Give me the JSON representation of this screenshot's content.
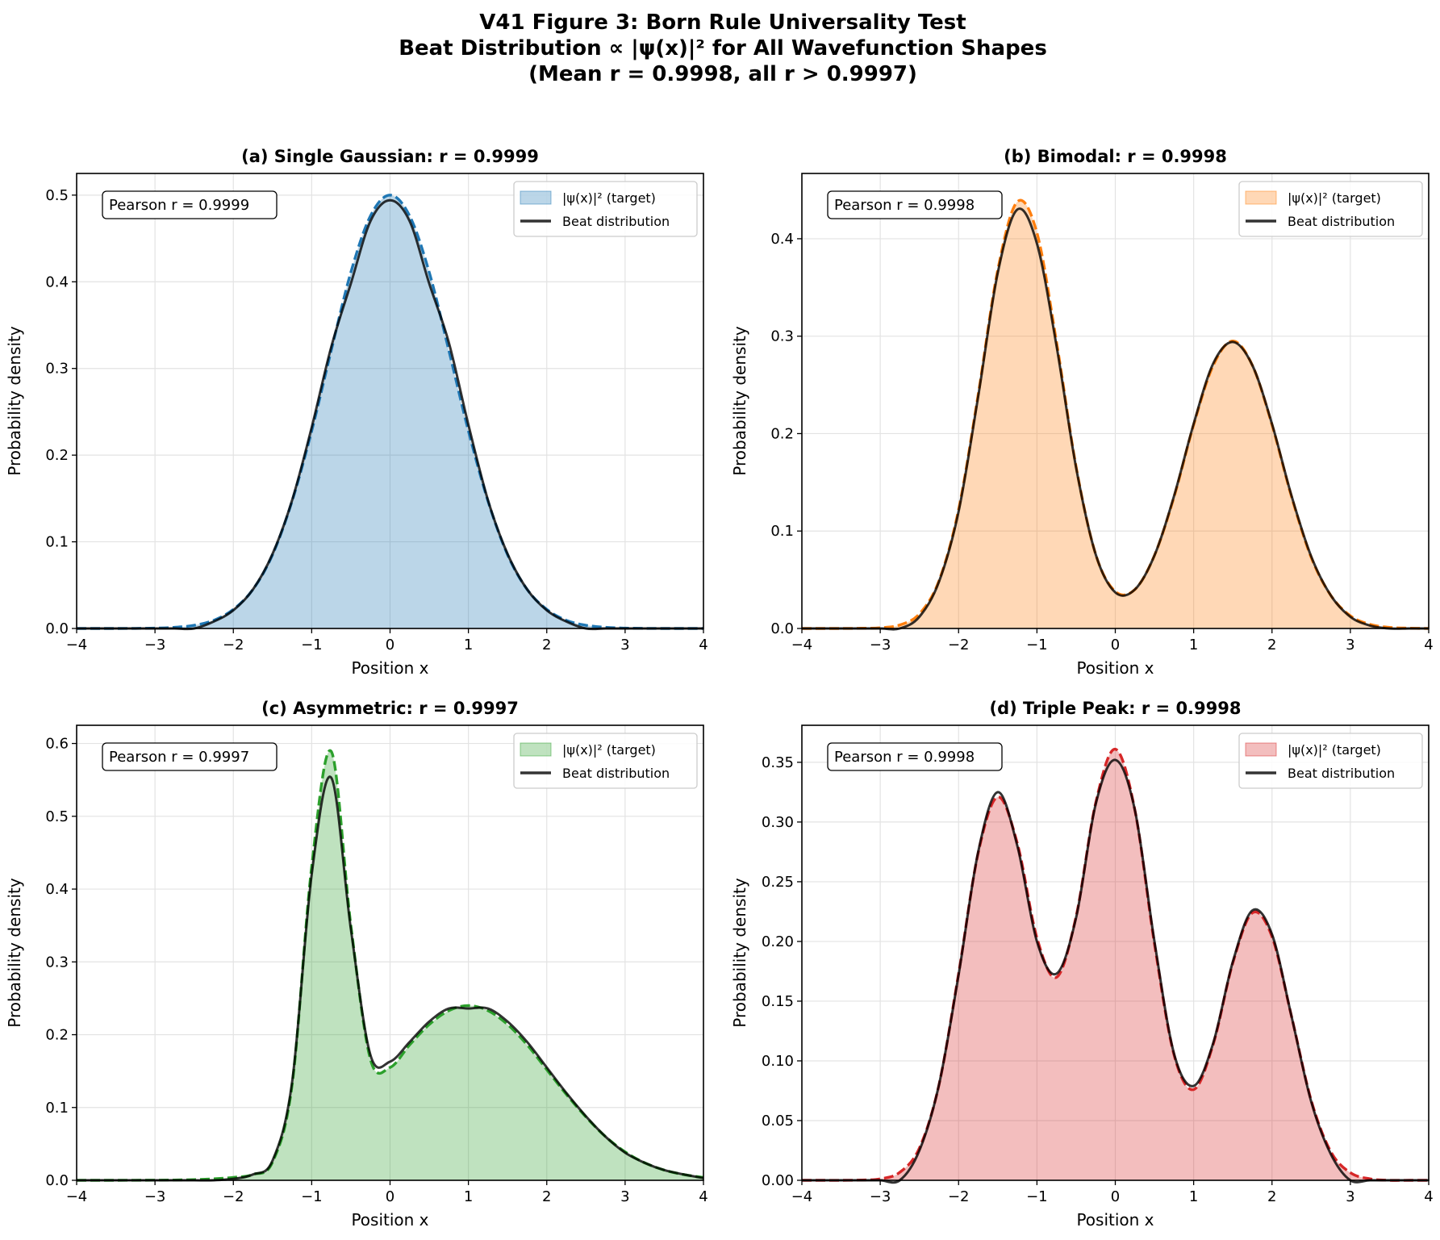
{
  "suptitle": [
    "V41 Figure 3: Born Rule Universality Test",
    "Beat Distribution ∝ |ψ(x)|² for All Wavefunction Shapes",
    "(Mean r = 0.9998, all r > 0.9997)"
  ],
  "chart_data": [
    {
      "type": "area",
      "title": "(a) Single Gaussian: r = 0.9999",
      "annotation": "Pearson r = 0.9999",
      "xlabel": "Position x",
      "ylabel": "Probability density",
      "xlim": [
        -4,
        4
      ],
      "ylim": [
        0,
        0.525
      ],
      "xticks": [
        -4,
        -3,
        -2,
        -1,
        0,
        1,
        2,
        3,
        4
      ],
      "xtick_labels": [
        "−4",
        "−3",
        "−2",
        "−1",
        "0",
        "1",
        "2",
        "3",
        "4"
      ],
      "yticks": [
        0,
        0.1,
        0.2,
        0.3,
        0.4,
        0.5
      ],
      "ytick_labels": [
        "0.0",
        "0.1",
        "0.2",
        "0.3",
        "0.4",
        "0.5"
      ],
      "grid": true,
      "legend_position": "top-right",
      "color": "#1f77b4",
      "x": [
        -4,
        -3.75,
        -3.5,
        -3.25,
        -3,
        -2.75,
        -2.5,
        -2.25,
        -2,
        -1.75,
        -1.5,
        -1.25,
        -1,
        -0.75,
        -0.5,
        -0.25,
        0,
        0.25,
        0.5,
        0.75,
        1,
        1.25,
        1.5,
        1.75,
        2,
        2.25,
        2.5,
        2.75,
        3,
        3.25,
        3.5,
        3.75,
        4
      ],
      "series": [
        {
          "name": "|ψ(x)|² (target)",
          "values": [
            0,
            0,
            0,
            0.0001,
            0.0004,
            0.0013,
            0.0037,
            0.0094,
            0.022,
            0.045,
            0.085,
            0.147,
            0.228,
            0.321,
            0.411,
            0.476,
            0.5,
            0.476,
            0.411,
            0.321,
            0.228,
            0.147,
            0.085,
            0.045,
            0.022,
            0.0094,
            0.0037,
            0.0013,
            0.0004,
            0.0001,
            0,
            0,
            0
          ]
        },
        {
          "name": "Beat distribution",
          "values": [
            0,
            0,
            0,
            0,
            0,
            0,
            0,
            0.008,
            0.021,
            0.045,
            0.086,
            0.148,
            0.232,
            0.325,
            0.398,
            0.47,
            0.494,
            0.47,
            0.398,
            0.33,
            0.235,
            0.148,
            0.086,
            0.045,
            0.021,
            0.008,
            0,
            0,
            0,
            0,
            0,
            0,
            0
          ]
        }
      ]
    },
    {
      "type": "area",
      "title": "(b) Bimodal: r = 0.9998",
      "annotation": "Pearson r = 0.9998",
      "xlabel": "Position x",
      "ylabel": "Probability density",
      "xlim": [
        -4,
        4
      ],
      "ylim": [
        0,
        0.467
      ],
      "xticks": [
        -4,
        -3,
        -2,
        -1,
        0,
        1,
        2,
        3,
        4
      ],
      "xtick_labels": [
        "−4",
        "−3",
        "−2",
        "−1",
        "0",
        "1",
        "2",
        "3",
        "4"
      ],
      "yticks": [
        0,
        0.1,
        0.2,
        0.3,
        0.4
      ],
      "ytick_labels": [
        "0.0",
        "0.1",
        "0.2",
        "0.3",
        "0.4"
      ],
      "grid": true,
      "legend_position": "top-right",
      "color": "#ff7f0e",
      "x": [
        -4,
        -3.75,
        -3.5,
        -3.25,
        -3,
        -2.75,
        -2.5,
        -2.25,
        -2,
        -1.75,
        -1.5,
        -1.25,
        -1,
        -0.75,
        -0.5,
        -0.25,
        0,
        0.25,
        0.5,
        0.75,
        1,
        1.25,
        1.5,
        1.75,
        2,
        2.25,
        2.5,
        2.75,
        3,
        3.25,
        3.5,
        3.75,
        4
      ],
      "series": [
        {
          "name": "|ψ(x)|² (target)",
          "values": [
            0,
            0,
            0,
            0.0002,
            0.0007,
            0.0036,
            0.015,
            0.049,
            0.122,
            0.24,
            0.368,
            0.438,
            0.406,
            0.294,
            0.166,
            0.076,
            0.038,
            0.04,
            0.075,
            0.135,
            0.209,
            0.27,
            0.295,
            0.27,
            0.209,
            0.135,
            0.073,
            0.034,
            0.013,
            0.0042,
            0.0011,
            0.0003,
            0
          ]
        },
        {
          "name": "Beat distribution",
          "values": [
            0,
            0,
            0,
            0,
            0,
            0,
            0.012,
            0.048,
            0.12,
            0.238,
            0.365,
            0.43,
            0.395,
            0.29,
            0.165,
            0.076,
            0.037,
            0.04,
            0.075,
            0.136,
            0.21,
            0.272,
            0.294,
            0.27,
            0.21,
            0.136,
            0.074,
            0.034,
            0.012,
            0.003,
            0,
            0,
            0
          ]
        }
      ]
    },
    {
      "type": "area",
      "title": "(c) Asymmetric: r = 0.9997",
      "annotation": "Pearson r = 0.9997",
      "xlabel": "Position x",
      "ylabel": "Probability density",
      "xlim": [
        -4,
        4
      ],
      "ylim": [
        0,
        0.625
      ],
      "xticks": [
        -4,
        -3,
        -2,
        -1,
        0,
        1,
        2,
        3,
        4
      ],
      "xtick_labels": [
        "−4",
        "−3",
        "−2",
        "−1",
        "0",
        "1",
        "2",
        "3",
        "4"
      ],
      "yticks": [
        0,
        0.1,
        0.2,
        0.3,
        0.4,
        0.5,
        0.6
      ],
      "ytick_labels": [
        "0.0",
        "0.1",
        "0.2",
        "0.3",
        "0.4",
        "0.5",
        "0.6"
      ],
      "grid": true,
      "legend_position": "top-right",
      "color": "#2ca02c",
      "x": [
        -4,
        -3.75,
        -3.5,
        -3.25,
        -3,
        -2.75,
        -2.5,
        -2.25,
        -2,
        -1.75,
        -1.5,
        -1.25,
        -1,
        -0.75,
        -0.5,
        -0.25,
        0,
        0.25,
        0.5,
        0.75,
        1,
        1.25,
        1.5,
        1.75,
        2,
        2.25,
        2.5,
        2.75,
        3,
        3.25,
        3.5,
        3.75,
        4
      ],
      "series": [
        {
          "name": "|ψ(x)|² (target)",
          "values": [
            0,
            0,
            0,
            0.0001,
            0.0002,
            0.0004,
            0.0009,
            0.002,
            0.004,
            0.008,
            0.025,
            0.131,
            0.431,
            0.589,
            0.35,
            0.166,
            0.155,
            0.186,
            0.214,
            0.233,
            0.24,
            0.233,
            0.214,
            0.186,
            0.152,
            0.118,
            0.087,
            0.06,
            0.039,
            0.024,
            0.014,
            0.0078,
            0.004
          ]
        },
        {
          "name": "Beat distribution",
          "values": [
            0,
            0,
            0,
            0,
            0,
            0,
            0,
            0,
            0.002,
            0.008,
            0.027,
            0.135,
            0.42,
            0.553,
            0.345,
            0.172,
            0.163,
            0.19,
            0.218,
            0.236,
            0.236,
            0.236,
            0.218,
            0.19,
            0.155,
            0.12,
            0.088,
            0.06,
            0.038,
            0.024,
            0.014,
            0.008,
            0.003
          ]
        }
      ]
    },
    {
      "type": "area",
      "title": "(d) Triple Peak: r = 0.9998",
      "annotation": "Pearson r = 0.9998",
      "xlabel": "Position x",
      "ylabel": "Probability density",
      "xlim": [
        -4,
        4
      ],
      "ylim": [
        0,
        0.381
      ],
      "xticks": [
        -4,
        -3,
        -2,
        -1,
        0,
        1,
        2,
        3,
        4
      ],
      "xtick_labels": [
        "−4",
        "−3",
        "−2",
        "−1",
        "0",
        "1",
        "2",
        "3",
        "4"
      ],
      "yticks": [
        0,
        0.05,
        0.1,
        0.15,
        0.2,
        0.25,
        0.3,
        0.35
      ],
      "ytick_labels": [
        "0.00",
        "0.05",
        "0.10",
        "0.15",
        "0.20",
        "0.25",
        "0.30",
        "0.35"
      ],
      "grid": true,
      "legend_position": "top-right",
      "color": "#d62728",
      "x": [
        -4,
        -3.75,
        -3.5,
        -3.25,
        -3,
        -2.75,
        -2.5,
        -2.25,
        -2,
        -1.75,
        -1.5,
        -1.25,
        -1,
        -0.75,
        -0.5,
        -0.25,
        0,
        0.25,
        0.5,
        0.75,
        1,
        1.25,
        1.5,
        1.75,
        2,
        2.25,
        2.5,
        2.75,
        3,
        3.25,
        3.5,
        3.75,
        4
      ],
      "series": [
        {
          "name": "|ψ(x)|² (target)",
          "values": [
            0,
            0,
            0,
            0.0002,
            0.0012,
            0.0067,
            0.027,
            0.08,
            0.173,
            0.274,
            0.321,
            0.282,
            0.203,
            0.17,
            0.221,
            0.316,
            0.361,
            0.31,
            0.198,
            0.105,
            0.076,
            0.114,
            0.182,
            0.224,
            0.204,
            0.137,
            0.067,
            0.024,
            0.0064,
            0.0012,
            0,
            0,
            0
          ]
        },
        {
          "name": "Beat distribution",
          "values": [
            0,
            0,
            0,
            0,
            0,
            0,
            0.025,
            0.08,
            0.172,
            0.275,
            0.325,
            0.28,
            0.2,
            0.173,
            0.22,
            0.315,
            0.352,
            0.31,
            0.2,
            0.106,
            0.079,
            0.115,
            0.183,
            0.226,
            0.206,
            0.137,
            0.066,
            0.022,
            0,
            0,
            0,
            0,
            0
          ]
        }
      ]
    }
  ]
}
